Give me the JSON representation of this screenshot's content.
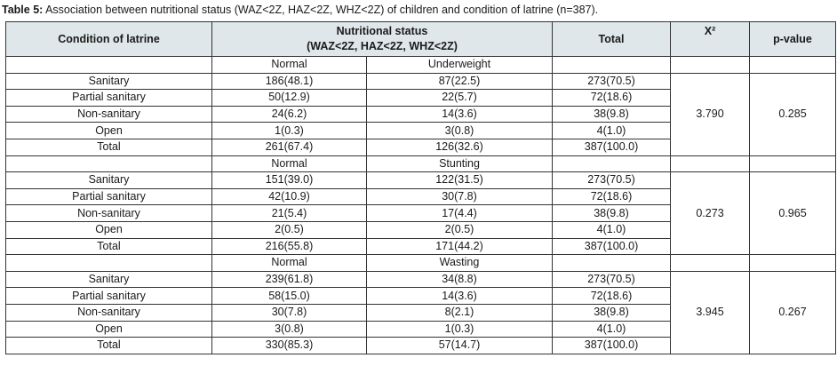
{
  "caption": {
    "label": "Table 5:",
    "text": " Association between nutritional status (WAZ<2Z, HAZ<2Z, WHZ<2Z) of children and condition of latrine (n=387)."
  },
  "header": {
    "condition": "Condition of latrine",
    "nutritional_line1": "Nutritional status",
    "nutritional_line2": "(WAZ<2Z, HAZ<2Z, WHZ<2Z)",
    "total": "Total",
    "chi": "X²",
    "pvalue": "p-value"
  },
  "blocks": [
    {
      "col1": "Normal",
      "col2": "Underweight",
      "chi": "3.790",
      "p": "0.285",
      "rows": [
        {
          "label": "Sanitary",
          "a": "186(48.1)",
          "b": "87(22.5)",
          "t": "273(70.5)"
        },
        {
          "label": "Partial sanitary",
          "a": "50(12.9)",
          "b": "22(5.7)",
          "t": "72(18.6)"
        },
        {
          "label": "Non-sanitary",
          "a": "24(6.2)",
          "b": "14(3.6)",
          "t": "38(9.8)"
        },
        {
          "label": "Open",
          "a": "1(0.3)",
          "b": "3(0.8)",
          "t": "4(1.0)"
        },
        {
          "label": "Total",
          "a": "261(67.4)",
          "b": "126(32.6)",
          "t": "387(100.0)"
        }
      ]
    },
    {
      "col1": "Normal",
      "col2": "Stunting",
      "chi": "0.273",
      "p": "0.965",
      "rows": [
        {
          "label": "Sanitary",
          "a": "151(39.0)",
          "b": "122(31.5)",
          "t": "273(70.5)"
        },
        {
          "label": "Partial sanitary",
          "a": "42(10.9)",
          "b": "30(7.8)",
          "t": "72(18.6)"
        },
        {
          "label": "Non-sanitary",
          "a": "21(5.4)",
          "b": "17(4.4)",
          "t": "38(9.8)"
        },
        {
          "label": "Open",
          "a": "2(0.5)",
          "b": "2(0.5)",
          "t": "4(1.0)"
        },
        {
          "label": "Total",
          "a": "216(55.8)",
          "b": "171(44.2)",
          "t": "387(100.0)"
        }
      ]
    },
    {
      "col1": "Normal",
      "col2": "Wasting",
      "chi": "3.945",
      "p": "0.267",
      "rows": [
        {
          "label": "Sanitary",
          "a": "239(61.8)",
          "b": "34(8.8)",
          "t": "273(70.5)"
        },
        {
          "label": "Partial sanitary",
          "a": "58(15.0)",
          "b": "14(3.6)",
          "t": "72(18.6)"
        },
        {
          "label": "Non-sanitary",
          "a": "30(7.8)",
          "b": "8(2.1)",
          "t": "38(9.8)"
        },
        {
          "label": "Open",
          "a": "3(0.8)",
          "b": "1(0.3)",
          "t": "4(1.0)"
        },
        {
          "label": "Total",
          "a": "330(85.3)",
          "b": "57(14.7)",
          "t": "387(100.0)"
        }
      ]
    }
  ]
}
